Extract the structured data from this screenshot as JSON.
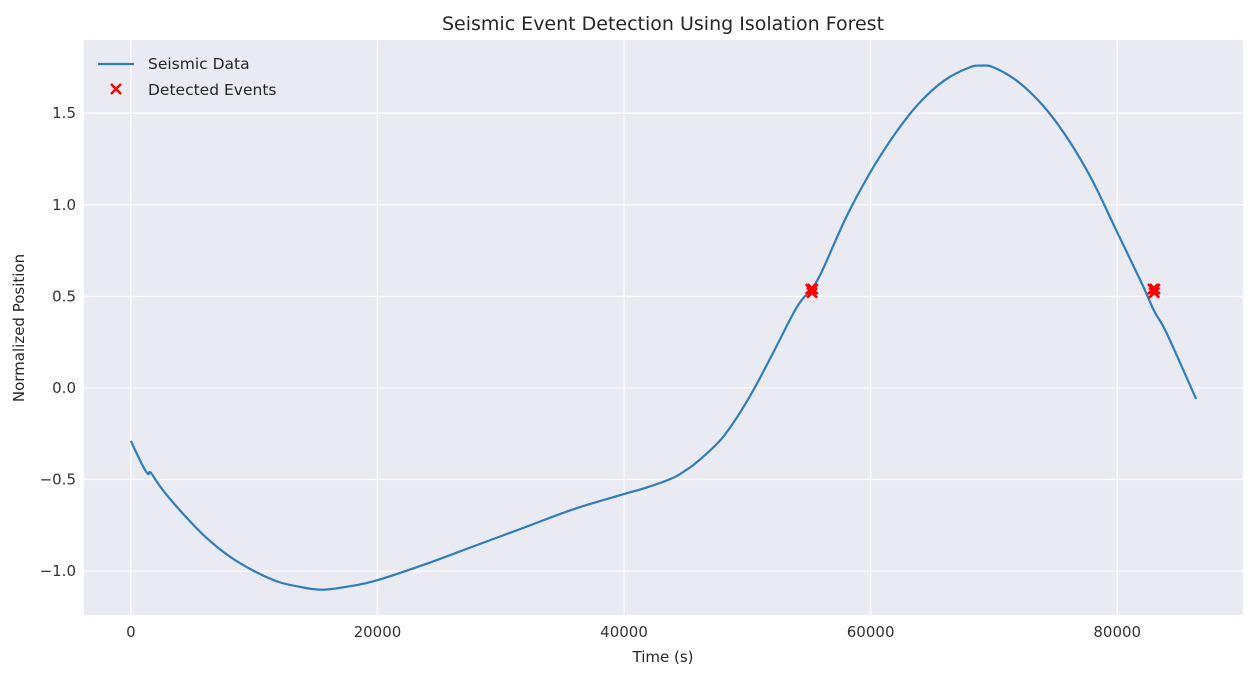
{
  "chart_data": {
    "type": "line",
    "title": "Seismic Event Detection Using Isolation Forest",
    "xlabel": "Time (s)",
    "ylabel": "Normalized Position",
    "xlim": [
      -3800,
      90200
    ],
    "ylim": [
      -1.24,
      1.9
    ],
    "x_ticks": [
      0,
      20000,
      40000,
      60000,
      80000
    ],
    "x_tick_labels": [
      "0",
      "20000",
      "40000",
      "60000",
      "80000"
    ],
    "y_ticks": [
      -1.0,
      -0.5,
      0.0,
      0.5,
      1.0,
      1.5
    ],
    "y_tick_labels": [
      "−1.0",
      "−0.5",
      "0.0",
      "0.5",
      "1.0",
      "1.5"
    ],
    "grid": true,
    "legend_position": "top-left",
    "series": [
      {
        "name": "Seismic Data",
        "kind": "line",
        "color": "#2f7ebc",
        "x": [
          0,
          1000,
          1400,
          1500,
          1700,
          2500,
          4000,
          6000,
          8000,
          10000,
          12000,
          14000,
          15000,
          16000,
          18000,
          20000,
          24000,
          28000,
          32000,
          36000,
          40000,
          42000,
          44000,
          45000,
          46000,
          48000,
          50000,
          52000,
          54000,
          55200,
          56000,
          58000,
          60000,
          62000,
          64000,
          66000,
          68000,
          69000,
          70000,
          72000,
          74000,
          76000,
          78000,
          80000,
          82000,
          83000,
          84000,
          86400
        ],
        "y": [
          -0.29,
          -0.43,
          -0.47,
          -0.46,
          -0.47,
          -0.55,
          -0.67,
          -0.81,
          -0.92,
          -1.0,
          -1.06,
          -1.09,
          -1.1,
          -1.1,
          -1.08,
          -1.05,
          -0.96,
          -0.86,
          -0.76,
          -0.66,
          -0.58,
          -0.54,
          -0.49,
          -0.45,
          -0.4,
          -0.27,
          -0.07,
          0.18,
          0.44,
          0.54,
          0.63,
          0.93,
          1.18,
          1.39,
          1.56,
          1.68,
          1.75,
          1.76,
          1.75,
          1.67,
          1.54,
          1.36,
          1.13,
          0.85,
          0.57,
          0.42,
          0.3,
          -0.06
        ]
      },
      {
        "name": "Detected Events",
        "kind": "scatter",
        "marker": "x",
        "color": "#ff0000",
        "x": [
          55150,
          55300,
          55250,
          82900,
          83050,
          83000
        ],
        "y": [
          0.54,
          0.54,
          0.52,
          0.54,
          0.54,
          0.52
        ]
      }
    ]
  }
}
